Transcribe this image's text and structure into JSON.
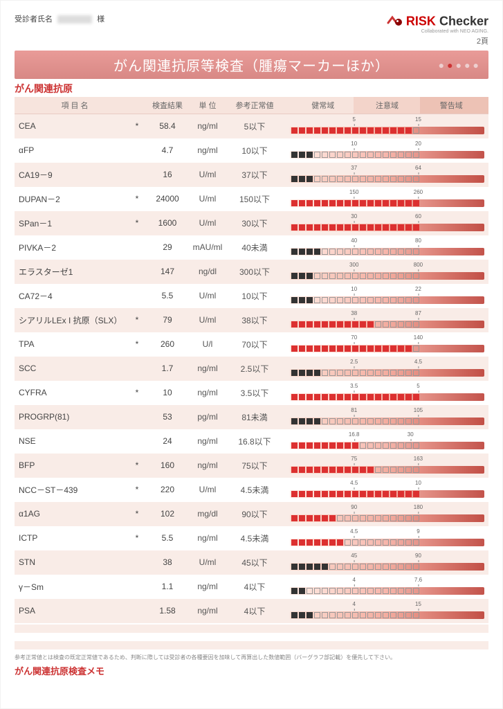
{
  "header": {
    "patient_label": "受診者氏名",
    "honorific": "様",
    "logo_risk": "RISK",
    "logo_checker": "Checker",
    "logo_sub": "Collaborated with NEO AGING.",
    "page_num": "2頁"
  },
  "title": "がん関連抗原等検査（腫瘍マーカーほか）",
  "section_title": "がん関連抗原",
  "columns": {
    "name": "項 目 名",
    "result": "検査結果",
    "unit": "単 位",
    "ref": "参考正常値",
    "zone_healthy": "健常域",
    "zone_caution": "注意域",
    "zone_warn": "警告域"
  },
  "gauge_segments": 17,
  "rows": [
    {
      "name": "CEA",
      "flag": "*",
      "value": "58.4",
      "unit": "ng/ml",
      "ref": "5以下",
      "marks": [
        "5",
        "15"
      ],
      "mark_pos": [
        33,
        66
      ],
      "fill_ratio": 0.97,
      "color": "red"
    },
    {
      "name": "αFP",
      "flag": "",
      "value": "4.7",
      "unit": "ng/ml",
      "ref": "10以下",
      "marks": [
        "10",
        "20"
      ],
      "mark_pos": [
        33,
        66
      ],
      "fill_ratio": 0.18,
      "color": "black"
    },
    {
      "name": "CA19－9",
      "flag": "",
      "value": "16",
      "unit": "U/ml",
      "ref": "37以下",
      "marks": [
        "37",
        "64"
      ],
      "mark_pos": [
        33,
        66
      ],
      "fill_ratio": 0.17,
      "color": "black"
    },
    {
      "name": "DUPAN－2",
      "flag": "*",
      "value": "24000",
      "unit": "U/ml",
      "ref": "150以下",
      "marks": [
        "150",
        "260"
      ],
      "mark_pos": [
        33,
        66
      ],
      "fill_ratio": 1.0,
      "color": "red"
    },
    {
      "name": "SPan－1",
      "flag": "*",
      "value": "1600",
      "unit": "U/ml",
      "ref": "30以下",
      "marks": [
        "30",
        "60"
      ],
      "mark_pos": [
        33,
        66
      ],
      "fill_ratio": 1.0,
      "color": "red"
    },
    {
      "name": "PIVKA－2",
      "flag": "",
      "value": "29",
      "unit": "mAU/ml",
      "ref": "40未満",
      "marks": [
        "40",
        "80"
      ],
      "mark_pos": [
        33,
        66
      ],
      "fill_ratio": 0.24,
      "color": "black"
    },
    {
      "name": "エラスターゼ1",
      "flag": "",
      "value": "147",
      "unit": "ng/dl",
      "ref": "300以下",
      "marks": [
        "300",
        "800"
      ],
      "mark_pos": [
        33,
        66
      ],
      "fill_ratio": 0.17,
      "color": "black"
    },
    {
      "name": "CA72－4",
      "flag": "",
      "value": "5.5",
      "unit": "U/ml",
      "ref": "10以下",
      "marks": [
        "10",
        "22"
      ],
      "mark_pos": [
        33,
        66
      ],
      "fill_ratio": 0.2,
      "color": "black"
    },
    {
      "name": "シアリルLEx I 抗原（SLX）",
      "flag": "*",
      "value": "79",
      "unit": "U/ml",
      "ref": "38以下",
      "marks": [
        "38",
        "87"
      ],
      "mark_pos": [
        33,
        66
      ],
      "fill_ratio": 0.63,
      "color": "red"
    },
    {
      "name": "TPA",
      "flag": "*",
      "value": "260",
      "unit": "U/l",
      "ref": "70以下",
      "marks": [
        "70",
        "140"
      ],
      "mark_pos": [
        33,
        66
      ],
      "fill_ratio": 0.95,
      "color": "red"
    },
    {
      "name": "SCC",
      "flag": "",
      "value": "1.7",
      "unit": "ng/ml",
      "ref": "2.5以下",
      "marks": [
        "2.5",
        "4.5"
      ],
      "mark_pos": [
        33,
        66
      ],
      "fill_ratio": 0.22,
      "color": "black"
    },
    {
      "name": "CYFRA",
      "flag": "*",
      "value": "10",
      "unit": "ng/ml",
      "ref": "3.5以下",
      "marks": [
        "3.5",
        "5"
      ],
      "mark_pos": [
        33,
        66
      ],
      "fill_ratio": 1.0,
      "color": "red"
    },
    {
      "name": "PROGRP(81)",
      "flag": "",
      "value": "53",
      "unit": "pg/ml",
      "ref": "81未満",
      "marks": [
        "81",
        "105"
      ],
      "mark_pos": [
        33,
        66
      ],
      "fill_ratio": 0.23,
      "color": "black"
    },
    {
      "name": "NSE",
      "flag": "",
      "value": "24",
      "unit": "ng/ml",
      "ref": "16.8以下",
      "marks": [
        "16.8",
        "30"
      ],
      "mark_pos": [
        33,
        62
      ],
      "fill_ratio": 0.5,
      "color": "red"
    },
    {
      "name": "BFP",
      "flag": "*",
      "value": "160",
      "unit": "ng/ml",
      "ref": "75以下",
      "marks": [
        "75",
        "163"
      ],
      "mark_pos": [
        33,
        66
      ],
      "fill_ratio": 0.65,
      "color": "red"
    },
    {
      "name": "NCC－ST－439",
      "flag": "*",
      "value": "220",
      "unit": "U/ml",
      "ref": "4.5未満",
      "marks": [
        "4.5",
        "10"
      ],
      "mark_pos": [
        33,
        66
      ],
      "fill_ratio": 1.0,
      "color": "red"
    },
    {
      "name": "α1AG",
      "flag": "*",
      "value": "102",
      "unit": "mg/dl",
      "ref": "90以下",
      "marks": [
        "90",
        "180"
      ],
      "mark_pos": [
        33,
        66
      ],
      "fill_ratio": 0.38,
      "color": "red"
    },
    {
      "name": "ICTP",
      "flag": "*",
      "value": "5.5",
      "unit": "ng/ml",
      "ref": "4.5未満",
      "marks": [
        "4.5",
        "9"
      ],
      "mark_pos": [
        33,
        66
      ],
      "fill_ratio": 0.4,
      "color": "red"
    },
    {
      "name": "STN",
      "flag": "",
      "value": "38",
      "unit": "U/ml",
      "ref": "45以下",
      "marks": [
        "45",
        "90"
      ],
      "mark_pos": [
        33,
        66
      ],
      "fill_ratio": 0.28,
      "color": "black"
    },
    {
      "name": "γ－Sm",
      "flag": "",
      "value": "1.1",
      "unit": "ng/ml",
      "ref": "4以下",
      "marks": [
        "4",
        "7.6"
      ],
      "mark_pos": [
        33,
        66
      ],
      "fill_ratio": 0.12,
      "color": "black"
    },
    {
      "name": "PSA",
      "flag": "",
      "value": "1.58",
      "unit": "ng/ml",
      "ref": "4以下",
      "marks": [
        "4",
        "15"
      ],
      "mark_pos": [
        33,
        66
      ],
      "fill_ratio": 0.18,
      "color": "black"
    }
  ],
  "footnote": "参考正常値とは検査の既定正常値であるため、判断に際しては受診者の各種要因を加味して再算出した数値範囲（バーグラフ部記載）を優先して下さい。",
  "memo_title": "がん関連抗原検査メモ",
  "colors": {
    "brand_red": "#c33",
    "square_red": "#dc3030",
    "square_black": "#333333",
    "row_stripe": "#f9ece7"
  }
}
